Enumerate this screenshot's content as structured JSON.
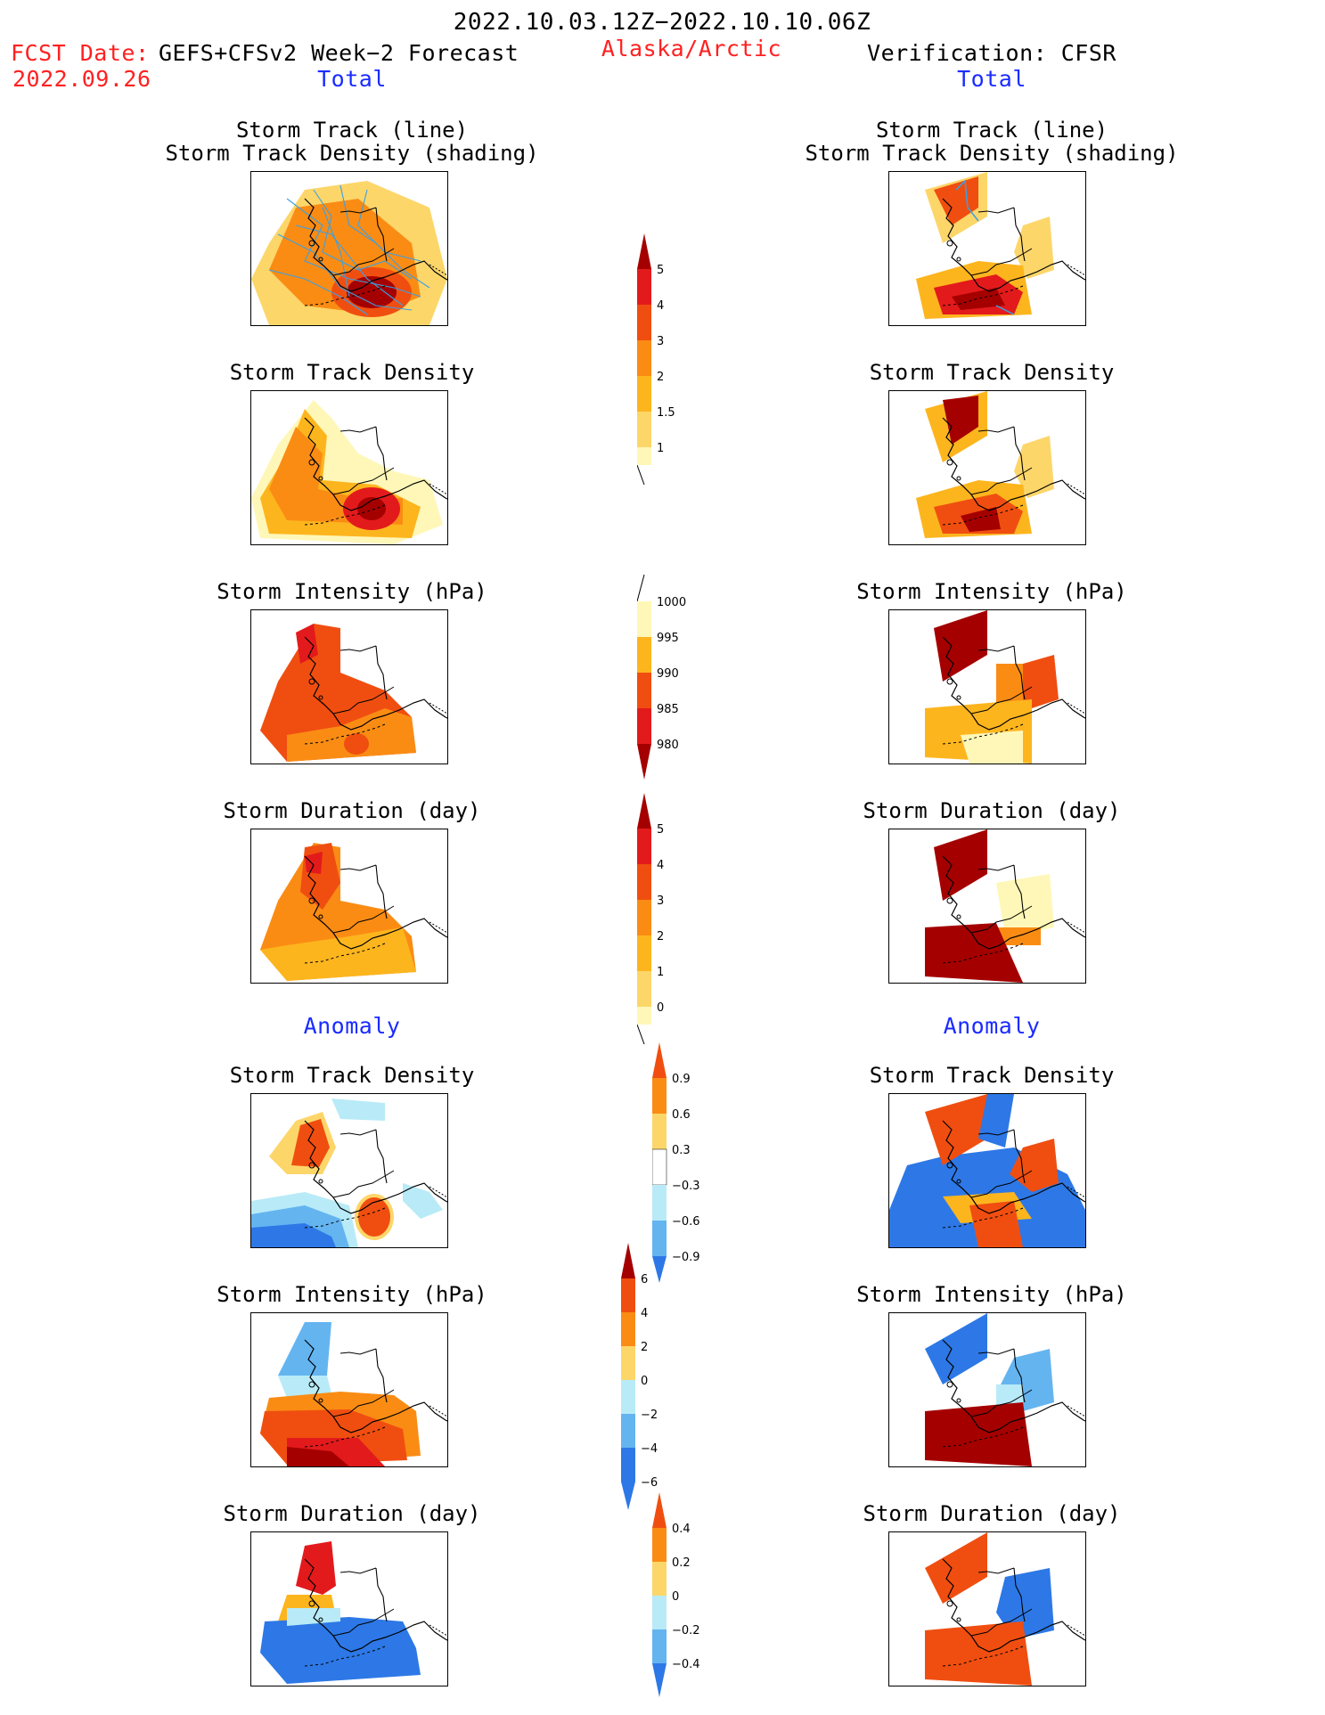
{
  "header": {
    "title": "2022.10.03.12Z−2022.10.10.06Z",
    "fcst_label": "FCST Date:",
    "fcst_date": "2022.09.26",
    "model": "GEFS+CFSv2 Week−2 Forecast",
    "region": "Alaska/Arctic",
    "verification": "Verification: CFSR"
  },
  "sections": {
    "total": "Total",
    "anomaly": "Anomaly"
  },
  "panel_titles": {
    "track_line": "Storm Track (line)",
    "track_density_shading": "Storm Track Density (shading)",
    "track_density": "Storm Track Density",
    "intensity": "Storm Intensity (hPa)",
    "duration": "Storm Duration (day)"
  },
  "colorbars": {
    "density_total": [
      "5",
      "4",
      "3",
      "2",
      "1.5",
      "1"
    ],
    "intensity_total": [
      "1000",
      "995",
      "990",
      "985",
      "980"
    ],
    "duration_total": [
      "5",
      "4",
      "3",
      "2",
      "1",
      "0"
    ],
    "density_anom": [
      "0.9",
      "0.6",
      "0.3",
      "−0.3",
      "−0.6",
      "−0.9"
    ],
    "intensity_anom": [
      "6",
      "4",
      "2",
      "0",
      "−2",
      "−4",
      "−6"
    ],
    "duration_anom": [
      "0.4",
      "0.2",
      "0",
      "−0.2",
      "−0.4"
    ]
  },
  "colors": {
    "title_red": "#ff2020",
    "title_blue": "#1a2cff",
    "dark_red": "#a50000",
    "red": "#e31a1c",
    "orange_red": "#f04e10",
    "orange": "#fa8c14",
    "amber": "#fdb51e",
    "light_yellow": "#fdd66a",
    "pale_yellow": "#fff7b8",
    "light_blue": "#b8ebf7",
    "mid_blue": "#64b4f0",
    "blue": "#2d78e6",
    "deep_blue": "#1a50c8",
    "storm_track_line": "#3aa0e6"
  }
}
